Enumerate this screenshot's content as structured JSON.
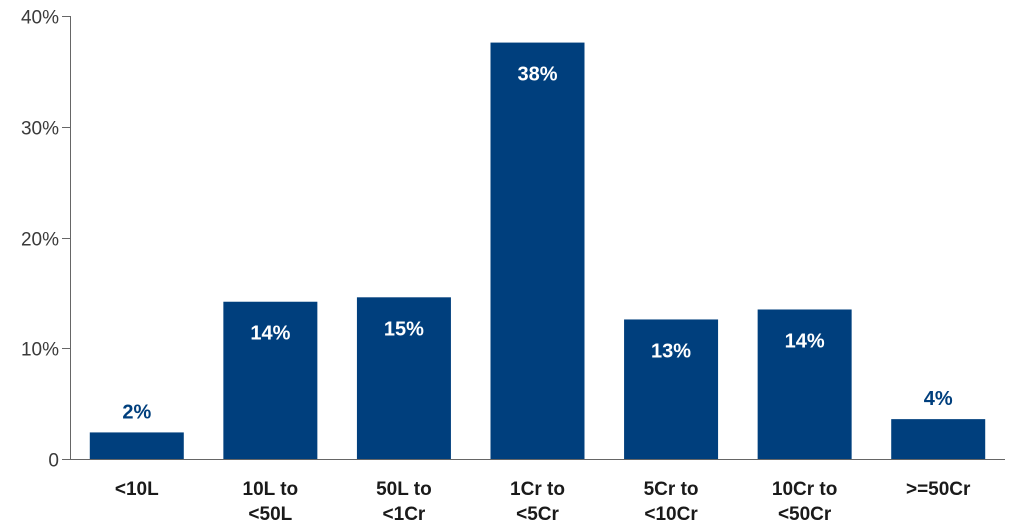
{
  "chart_data": {
    "type": "bar",
    "title": "",
    "xlabel": "",
    "ylabel": "",
    "ylim": [
      0,
      40
    ],
    "yticks": [
      {
        "value": 0,
        "label": "0"
      },
      {
        "value": 10,
        "label": "10%"
      },
      {
        "value": 20,
        "label": "20%"
      },
      {
        "value": 30,
        "label": "30%"
      },
      {
        "value": 40,
        "label": "40%"
      }
    ],
    "grid": false,
    "categories": [
      [
        "<10L"
      ],
      [
        "10L to",
        "<50L"
      ],
      [
        "50L to",
        "<1Cr"
      ],
      [
        "1Cr to",
        "<5Cr"
      ],
      [
        "5Cr to",
        "<10Cr"
      ],
      [
        "10Cr to",
        "<50Cr"
      ],
      [
        ">=50Cr"
      ]
    ],
    "values": [
      2.4,
      14.2,
      14.6,
      37.6,
      12.6,
      13.5,
      3.6
    ],
    "data_labels": [
      "2%",
      "14%",
      "15%",
      "38%",
      "13%",
      "14%",
      "4%"
    ],
    "bar_color": "#003f7d",
    "label_inside_color": "#ffffff",
    "label_outside_color": "#003f7d"
  }
}
